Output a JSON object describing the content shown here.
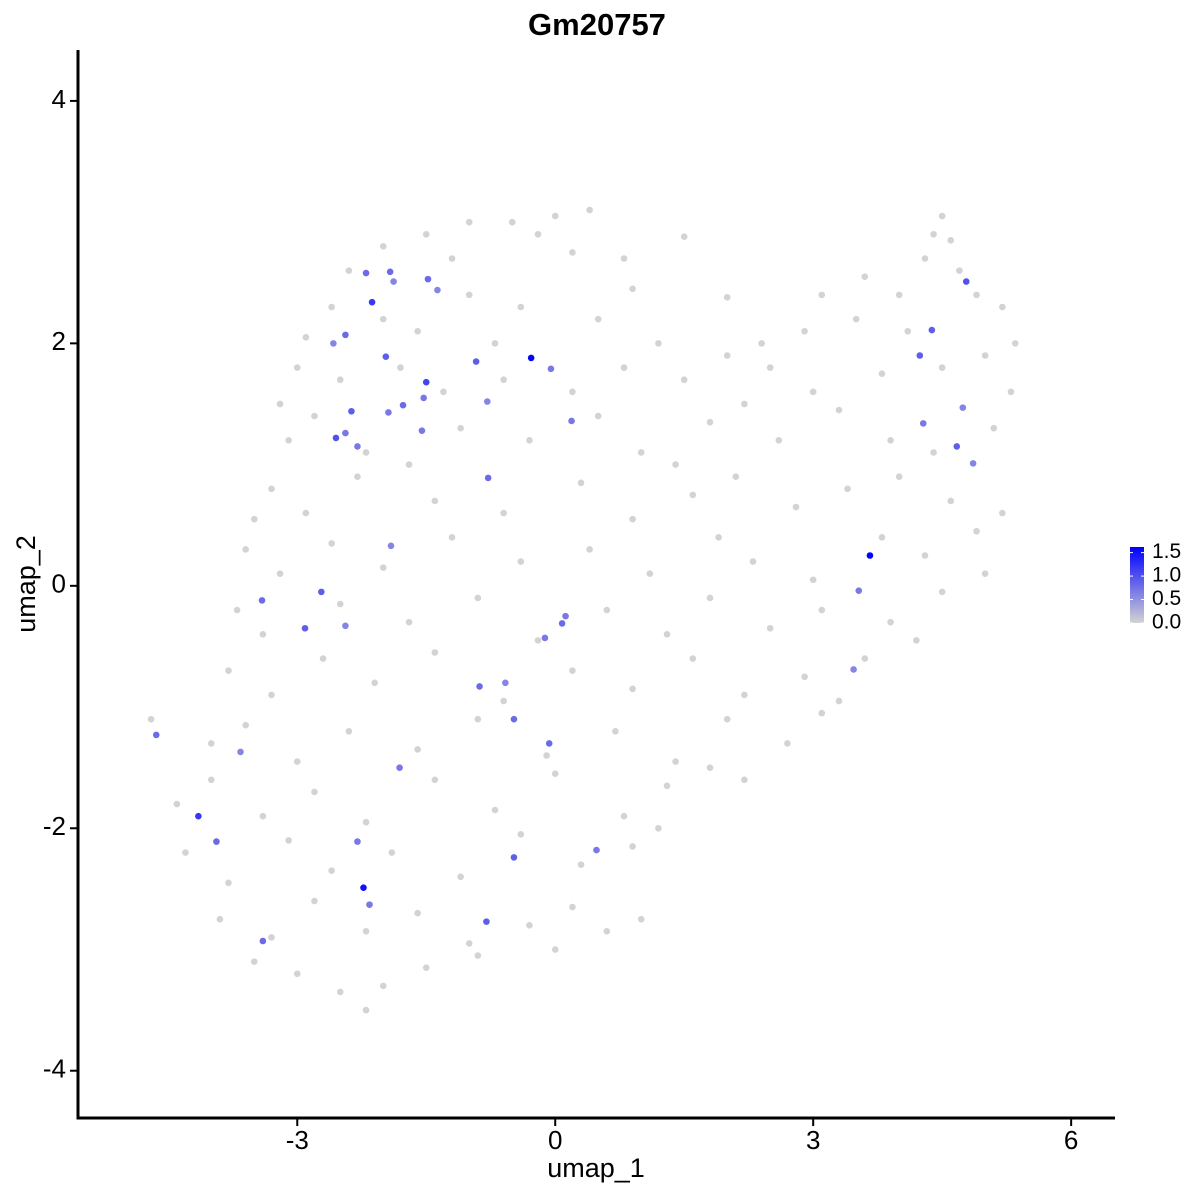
{
  "chart_data": {
    "type": "scatter",
    "title": "Gm20757",
    "xlabel": "umap_1",
    "ylabel": "umap_2",
    "x": [
      -1.5,
      -1.0,
      -0.5,
      0,
      0.4,
      -0.2,
      0.8,
      1.5,
      -2.0,
      -2.4,
      -1.2,
      0.2,
      4.5,
      4.4,
      4.6,
      4.3,
      4.7,
      3.6,
      3.1,
      2.0,
      -2.6,
      -2.0,
      -1.0,
      -0.4,
      0.5,
      1.2,
      2.4,
      2.9,
      3.5,
      4.0,
      4.9,
      5.2,
      5.35,
      4.1,
      -1.6,
      0.9,
      -0.7,
      -2.9,
      -3.0,
      -2.5,
      -1.8,
      -1.3,
      -0.6,
      0.2,
      0.8,
      1.5,
      2.0,
      2.5,
      3.0,
      3.8,
      4.5,
      5.0,
      5.3,
      2.2,
      -3.2,
      -3.1,
      -2.8,
      -2.2,
      -1.1,
      -0.3,
      0.5,
      1.0,
      1.8,
      2.6,
      3.3,
      3.9,
      4.4,
      5.1,
      1.4,
      -1.7,
      -3.3,
      -2.9,
      -2.3,
      -1.4,
      -0.6,
      0.3,
      0.9,
      1.6,
      2.1,
      2.8,
      3.4,
      4.0,
      4.6,
      5.2,
      -3.5,
      -3.6,
      -3.2,
      -2.6,
      -2.0,
      -1.2,
      -0.4,
      0.4,
      1.1,
      1.9,
      2.3,
      3.0,
      3.8,
      4.3,
      4.9,
      5.0,
      -3.7,
      -3.4,
      -2.5,
      -1.7,
      -0.9,
      -0.2,
      0.6,
      1.3,
      1.8,
      2.5,
      3.1,
      3.9,
      4.5,
      4.2,
      -3.8,
      -3.3,
      -2.7,
      -2.1,
      -1.4,
      -0.6,
      0.2,
      0.9,
      1.6,
      2.2,
      2.9,
      3.3,
      3.6,
      -4.7,
      -4.0,
      -3.6,
      -3.0,
      -2.4,
      -1.6,
      -0.9,
      -0.1,
      0.7,
      1.4,
      2.0,
      2.7,
      3.1,
      -4.4,
      -4.0,
      -3.4,
      -2.8,
      -2.2,
      -1.4,
      -0.7,
      0,
      0.8,
      1.3,
      1.8,
      2.2,
      -4.3,
      -3.8,
      -3.1,
      -2.6,
      -1.9,
      -1.1,
      -0.4,
      0.3,
      0.9,
      1.2,
      -3.9,
      -3.3,
      -2.8,
      -2.2,
      -1.6,
      -1.0,
      -0.3,
      0.2,
      0.6,
      1.0,
      -3.5,
      -3.0,
      -2.5,
      -2.2,
      -1.5,
      -0.9,
      0,
      -2.0,
      -4.64,
      -4.15,
      -3.94,
      -3.66,
      -3.4,
      -3.41,
      -2.91,
      -2.72,
      -2.44,
      -2.58,
      -2.44,
      -2.55,
      -2.44,
      -2.37,
      -2.3,
      -2.2,
      -2.13,
      -1.92,
      -1.88,
      -1.97,
      -1.94,
      -1.77,
      -1.48,
      -1.37,
      -1.5,
      -1.53,
      -1.55,
      -1.91,
      -0.92,
      -0.79,
      -0.78,
      -0.28,
      -0.05,
      0.19,
      0.12,
      0.08,
      -0.12,
      -0.88,
      -0.58,
      -0.48,
      -0.07,
      -1.81,
      -2.3,
      -2.23,
      -2.16,
      -0.8,
      -0.48,
      0.48,
      3.66,
      3.53,
      3.47,
      4.24,
      4.28,
      4.38,
      4.78,
      4.74,
      4.67,
      4.86
    ],
    "values": [
      2.9,
      3.0,
      3.0,
      3.05,
      3.1,
      2.9,
      2.7,
      2.88,
      2.8,
      2.6,
      2.7,
      2.75,
      3.05,
      2.9,
      2.85,
      2.7,
      2.6,
      2.55,
      2.4,
      2.38,
      2.3,
      2.2,
      2.4,
      2.3,
      2.2,
      2.0,
      2.0,
      2.1,
      2.2,
      2.4,
      2.4,
      2.3,
      2.0,
      2.1,
      2.1,
      2.45,
      2.0,
      2.05,
      1.8,
      1.7,
      1.8,
      1.6,
      1.7,
      1.6,
      1.8,
      1.7,
      1.9,
      1.8,
      1.6,
      1.75,
      1.8,
      1.9,
      1.6,
      1.5,
      1.5,
      1.2,
      1.4,
      1.1,
      1.3,
      1.2,
      1.4,
      1.1,
      1.35,
      1.2,
      1.45,
      1.2,
      1.1,
      1.3,
      1.0,
      1.0,
      0.8,
      0.6,
      0.9,
      0.7,
      0.6,
      0.85,
      0.55,
      0.75,
      0.9,
      0.65,
      0.8,
      0.9,
      0.7,
      0.6,
      0.55,
      0.3,
      0.1,
      0.35,
      0.15,
      0.4,
      0.2,
      0.3,
      0.1,
      0.4,
      0.2,
      0.05,
      0.4,
      0.25,
      0.45,
      0.1,
      -0.2,
      -0.4,
      -0.15,
      -0.3,
      -0.1,
      -0.45,
      -0.2,
      -0.4,
      -0.1,
      -0.35,
      -0.2,
      -0.3,
      -0.05,
      -0.45,
      -0.7,
      -0.9,
      -0.6,
      -0.8,
      -0.55,
      -0.95,
      -0.7,
      -0.85,
      -0.6,
      -0.9,
      -0.75,
      -0.95,
      -0.6,
      -1.1,
      -1.3,
      -1.15,
      -1.45,
      -1.2,
      -1.35,
      -1.1,
      -1.4,
      -1.2,
      -1.45,
      -1.1,
      -1.3,
      -1.05,
      -1.8,
      -1.6,
      -1.9,
      -1.7,
      -1.95,
      -1.6,
      -1.85,
      -1.55,
      -1.9,
      -1.65,
      -1.5,
      -1.6,
      -2.2,
      -2.45,
      -2.1,
      -2.35,
      -2.2,
      -2.4,
      -2.05,
      -2.3,
      -2.15,
      -2.0,
      -2.75,
      -2.9,
      -2.6,
      -2.85,
      -2.7,
      -2.95,
      -2.8,
      -2.65,
      -2.85,
      -2.75,
      -3.1,
      -3.2,
      -3.35,
      -3.5,
      -3.15,
      -3.05,
      -3.0,
      -3.3,
      -1.23,
      -1.9,
      -2.11,
      -1.37,
      -2.93,
      -0.12,
      -0.35,
      -0.05,
      -0.33,
      2.0,
      2.07,
      1.22,
      1.26,
      1.44,
      1.15,
      2.58,
      2.34,
      2.59,
      2.51,
      1.89,
      1.43,
      1.49,
      2.53,
      2.44,
      1.68,
      1.55,
      1.28,
      0.33,
      1.85,
      1.52,
      0.89,
      1.88,
      1.79,
      1.36,
      -0.25,
      -0.31,
      -0.43,
      -0.83,
      -0.8,
      -1.1,
      -1.3,
      -1.5,
      -2.11,
      -2.49,
      -2.63,
      -2.77,
      -2.24,
      -2.18,
      0.25,
      -0.04,
      -0.69,
      1.9,
      1.34,
      2.11,
      2.51,
      1.47,
      1.15,
      1.01
    ],
    "expression": [
      0,
      0,
      0,
      0,
      0,
      0,
      0,
      0,
      0,
      0,
      0,
      0,
      0,
      0,
      0,
      0,
      0,
      0,
      0,
      0,
      0,
      0,
      0,
      0,
      0,
      0,
      0,
      0,
      0,
      0,
      0,
      0,
      0,
      0,
      0,
      0,
      0,
      0,
      0,
      0,
      0,
      0,
      0,
      0,
      0,
      0,
      0,
      0,
      0,
      0,
      0,
      0,
      0,
      0,
      0,
      0,
      0,
      0,
      0,
      0,
      0,
      0,
      0,
      0,
      0,
      0,
      0,
      0,
      0,
      0,
      0,
      0,
      0,
      0,
      0,
      0,
      0,
      0,
      0,
      0,
      0,
      0,
      0,
      0,
      0,
      0,
      0,
      0,
      0,
      0,
      0,
      0,
      0,
      0,
      0,
      0,
      0,
      0,
      0,
      0,
      0,
      0,
      0,
      0,
      0,
      0,
      0,
      0,
      0,
      0,
      0,
      0,
      0,
      0,
      0,
      0,
      0,
      0,
      0,
      0,
      0,
      0,
      0,
      0,
      0,
      0,
      0,
      0,
      0,
      0,
      0,
      0,
      0,
      0,
      0,
      0,
      0,
      0,
      0,
      0,
      0,
      0,
      0,
      0,
      0,
      0,
      0,
      0,
      0,
      0,
      0,
      0,
      0,
      0,
      0,
      0,
      0,
      0,
      0,
      0,
      0,
      0,
      0,
      0,
      0,
      0,
      0,
      0,
      0,
      0,
      0,
      0,
      0,
      0,
      0,
      0,
      0,
      0,
      0,
      0,
      0.8,
      1.2,
      0.8,
      0.6,
      0.8,
      0.8,
      0.9,
      0.9,
      0.6,
      0.6,
      0.8,
      1.0,
      0.7,
      0.9,
      0.7,
      0.8,
      1.2,
      0.8,
      0.6,
      0.9,
      0.7,
      0.8,
      0.8,
      0.6,
      1.1,
      0.7,
      0.7,
      0.6,
      0.9,
      0.6,
      0.8,
      1.6,
      0.7,
      0.7,
      0.7,
      0.8,
      0.7,
      0.8,
      0.6,
      0.8,
      0.8,
      0.7,
      0.7,
      1.5,
      0.7,
      0.9,
      0.9,
      0.7,
      1.6,
      0.7,
      0.6,
      0.9,
      0.7,
      0.9,
      1.0,
      0.6,
      0.9,
      0.6
    ],
    "xlim": [
      -5.55,
      6.51
    ],
    "ylim": [
      -4.39,
      4.42
    ],
    "xticks": [
      -3,
      0,
      3,
      6
    ],
    "yticks": [
      -4,
      -2,
      0,
      2,
      4
    ],
    "colorbar": {
      "lim": [
        0,
        1.62
      ],
      "ticks": [
        {
          "value": 0,
          "label": "0.0"
        },
        0.5,
        {
          "value": 1,
          "label": "1.0"
        },
        1.5
      ],
      "colors": [
        "#d3d3d3",
        "#0000ff"
      ]
    }
  }
}
